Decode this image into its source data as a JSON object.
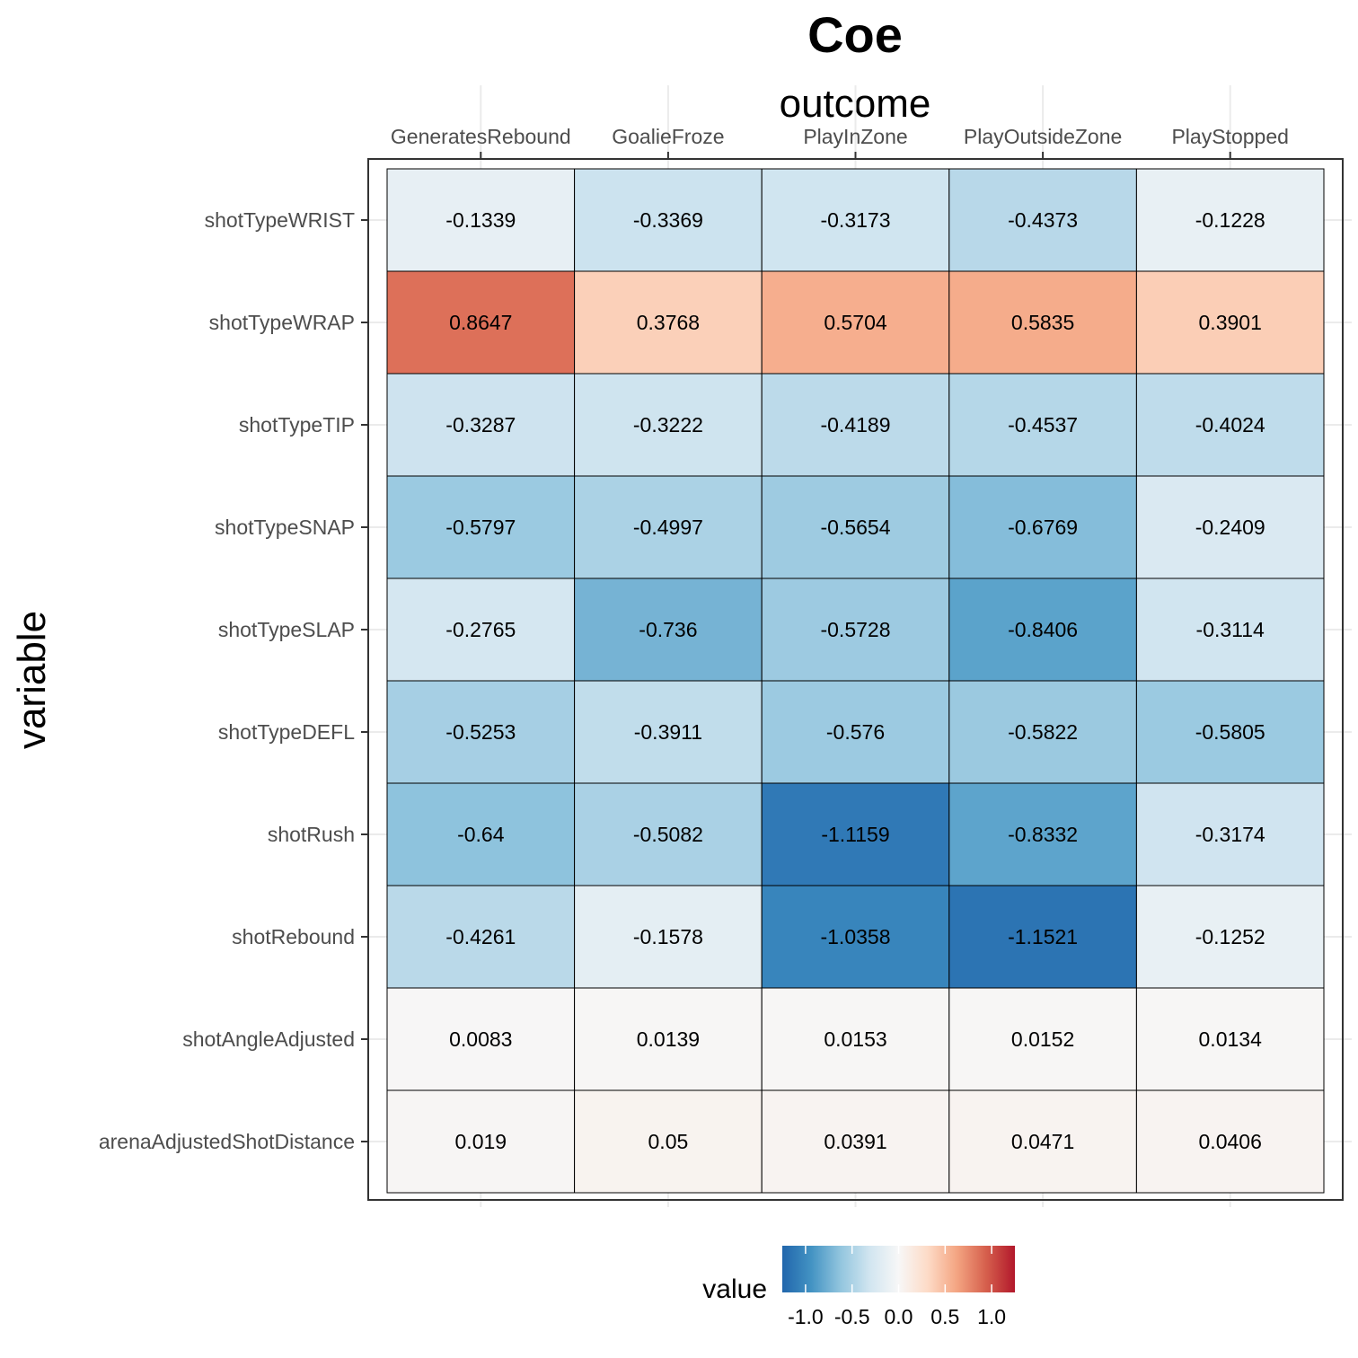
{
  "chart_data": {
    "type": "heatmap",
    "title": "Coe",
    "xlabel": "outcome",
    "ylabel": "variable",
    "x_axis_position": "top",
    "grid": true,
    "x": [
      "GeneratesRebound",
      "GoalieFroze",
      "PlayInZone",
      "PlayOutsideZone",
      "PlayStopped"
    ],
    "y": [
      "shotTypeWRIST",
      "shotTypeWRAP",
      "shotTypeTIP",
      "shotTypeSNAP",
      "shotTypeSLAP",
      "shotTypeDEFL",
      "shotRush",
      "shotRebound",
      "shotAngleAdjusted",
      "arenaAdjustedShotDistance"
    ],
    "values": [
      [
        -0.1339,
        -0.3369,
        -0.3173,
        -0.4373,
        -0.1228
      ],
      [
        0.8647,
        0.3768,
        0.5704,
        0.5835,
        0.3901
      ],
      [
        -0.3287,
        -0.3222,
        -0.4189,
        -0.4537,
        -0.4024
      ],
      [
        -0.5797,
        -0.4997,
        -0.5654,
        -0.6769,
        -0.2409
      ],
      [
        -0.2765,
        -0.736,
        -0.5728,
        -0.8406,
        -0.3114
      ],
      [
        -0.5253,
        -0.3911,
        -0.576,
        -0.5822,
        -0.5805
      ],
      [
        -0.64,
        -0.5082,
        -1.1159,
        -0.8332,
        -0.3174
      ],
      [
        -0.4261,
        -0.1578,
        -1.0358,
        -1.1521,
        -0.1252
      ],
      [
        0.0083,
        0.0139,
        0.0153,
        0.0152,
        0.0134
      ],
      [
        0.019,
        0.05,
        0.0391,
        0.0471,
        0.0406
      ]
    ],
    "value_labels": [
      [
        "-0.1339",
        "-0.3369",
        "-0.3173",
        "-0.4373",
        "-0.1228"
      ],
      [
        "0.8647",
        "0.3768",
        "0.5704",
        "0.5835",
        "0.3901"
      ],
      [
        "-0.3287",
        "-0.3222",
        "-0.4189",
        "-0.4537",
        "-0.4024"
      ],
      [
        "-0.5797",
        "-0.4997",
        "-0.5654",
        "-0.6769",
        "-0.2409"
      ],
      [
        "-0.2765",
        "-0.736",
        "-0.5728",
        "-0.8406",
        "-0.3114"
      ],
      [
        "-0.5253",
        "-0.3911",
        "-0.576",
        "-0.5822",
        "-0.5805"
      ],
      [
        "-0.64",
        "-0.5082",
        "-1.1159",
        "-0.8332",
        "-0.3174"
      ],
      [
        "-0.4261",
        "-0.1578",
        "-1.0358",
        "-1.1521",
        "-0.1252"
      ],
      [
        "0.0083",
        "0.0139",
        "0.0153",
        "0.0152",
        "0.0134"
      ],
      [
        "0.019",
        "0.05",
        "0.0391",
        "0.0471",
        "0.0406"
      ]
    ],
    "legend": {
      "title": "value",
      "position": "bottom",
      "limits": [
        -1.25,
        1.25
      ],
      "ticks": [
        -1.0,
        -0.5,
        0.0,
        0.5,
        1.0
      ],
      "tick_labels": [
        "-1.0",
        "-0.5",
        "0.0",
        "0.5",
        "1.0"
      ]
    },
    "colors": {
      "low": "#2166ac",
      "mid": "#f7f7f7",
      "high": "#b2182b",
      "palette": [
        "#2166ac",
        "#4393c3",
        "#92c5de",
        "#d1e5f0",
        "#f7f7f7",
        "#fddbc7",
        "#f4a582",
        "#d6604d",
        "#b2182b"
      ]
    }
  }
}
